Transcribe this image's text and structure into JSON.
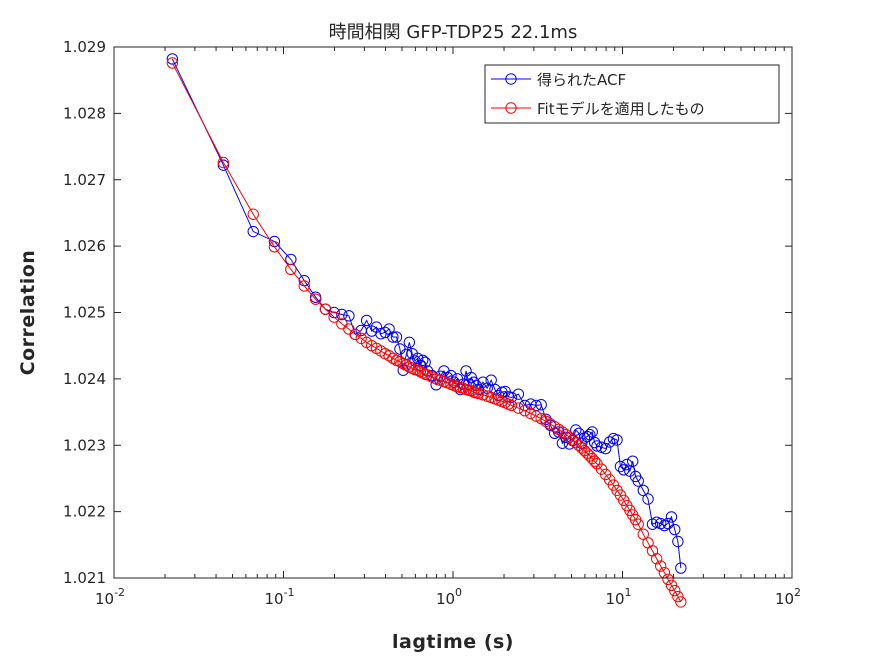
{
  "chart_data": {
    "type": "line",
    "title": "時間相関 GFP-TDP25 22.1ms",
    "xlabel": "lagtime (s)",
    "ylabel": "Correlation",
    "xscale": "log",
    "xlim": [
      0.01,
      100
    ],
    "ylim": [
      1.021,
      1.029
    ],
    "x_ticks": [
      {
        "base": "10",
        "exp": "-2",
        "value": 0.01
      },
      {
        "base": "10",
        "exp": "-1",
        "value": 0.1
      },
      {
        "base": "10",
        "exp": "0",
        "value": 1
      },
      {
        "base": "10",
        "exp": "1",
        "value": 10
      },
      {
        "base": "10",
        "exp": "2",
        "value": 100
      }
    ],
    "y_ticks": [
      {
        "label": "1.021",
        "value": 1.021
      },
      {
        "label": "1.022",
        "value": 1.022
      },
      {
        "label": "1.023",
        "value": 1.023
      },
      {
        "label": "1.024",
        "value": 1.024
      },
      {
        "label": "1.025",
        "value": 1.025
      },
      {
        "label": "1.026",
        "value": 1.026
      },
      {
        "label": "1.027",
        "value": 1.027
      },
      {
        "label": "1.028",
        "value": 1.028
      },
      {
        "label": "1.029",
        "value": 1.029
      }
    ],
    "grid": false,
    "legend_position": "top-right",
    "series": [
      {
        "name": "得られたACF",
        "color": "#0000ff",
        "marker": "circle",
        "x": [
          0.0221,
          0.0442,
          0.0663,
          0.0884,
          0.1105,
          0.1326,
          0.1547,
          0.1768,
          0.1989,
          0.221,
          0.2431,
          0.2652,
          0.2873,
          0.3094,
          0.3315,
          0.3536,
          0.3757,
          0.3978,
          0.4199,
          0.442,
          0.4641,
          0.4862,
          0.5083,
          0.5304,
          0.5525,
          0.5746,
          0.5967,
          0.6188,
          0.6409,
          0.663,
          0.6851,
          0.7072,
          0.7514,
          0.7956,
          0.8398,
          0.884,
          0.9282,
          0.9724,
          1.017,
          1.061,
          1.105,
          1.149,
          1.194,
          1.238,
          1.282,
          1.326,
          1.37,
          1.415,
          1.503,
          1.592,
          1.68,
          1.768,
          1.857,
          1.945,
          2.033,
          2.122,
          2.21,
          2.431,
          2.652,
          2.873,
          3.094,
          3.315,
          3.536,
          3.757,
          3.978,
          4.199,
          4.42,
          4.641,
          4.862,
          5.083,
          5.304,
          5.525,
          5.746,
          5.967,
          6.188,
          6.409,
          6.63,
          6.851,
          7.072,
          7.514,
          7.956,
          8.398,
          8.84,
          9.282,
          9.724,
          10.17,
          10.61,
          11.05,
          11.49,
          11.94,
          12.38,
          13.26,
          14.15,
          15.03,
          15.91,
          16.8,
          17.68,
          18.56,
          19.45,
          20.33,
          21.22,
          22.1
        ],
        "y": [
          1.02882,
          1.02722,
          1.02622,
          1.02607,
          1.0258,
          1.02548,
          1.02523,
          1.02505,
          1.025,
          1.02497,
          1.02495,
          1.02467,
          1.02473,
          1.02488,
          1.02472,
          1.02478,
          1.02468,
          1.0247,
          1.02475,
          1.02463,
          1.02463,
          1.02445,
          1.02413,
          1.02437,
          1.02455,
          1.02438,
          1.02427,
          1.02431,
          1.0242,
          1.02428,
          1.02425,
          1.02412,
          1.02405,
          1.02391,
          1.02404,
          1.02412,
          1.02402,
          1.02405,
          1.02395,
          1.024,
          1.02384,
          1.02392,
          1.02412,
          1.02392,
          1.02402,
          1.02395,
          1.0239,
          1.02384,
          1.02395,
          1.02386,
          1.02398,
          1.02384,
          1.02375,
          1.0238,
          1.02381,
          1.02373,
          1.02372,
          1.02377,
          1.0236,
          1.02362,
          1.0236,
          1.02361,
          1.02339,
          1.0233,
          1.02318,
          1.0232,
          1.02303,
          1.02312,
          1.02302,
          1.02307,
          1.02323,
          1.02318,
          1.02303,
          1.02311,
          1.02313,
          1.02316,
          1.0232,
          1.02304,
          1.02299,
          1.02297,
          1.02295,
          1.02305,
          1.0231,
          1.02308,
          1.02268,
          1.02263,
          1.02271,
          1.02261,
          1.02276,
          1.02253,
          1.02246,
          1.02232,
          1.02219,
          1.02181,
          1.02184,
          1.02182,
          1.02179,
          1.02182,
          1.02192,
          1.02173,
          1.02155,
          1.02115
        ]
      },
      {
        "name": "Fitモデルを適用したもの",
        "color": "#ff0000",
        "marker": "circle",
        "x": [
          0.0221,
          0.0442,
          0.0663,
          0.0884,
          0.1105,
          0.1326,
          0.1547,
          0.1768,
          0.1989,
          0.221,
          0.2431,
          0.2652,
          0.2873,
          0.3094,
          0.3315,
          0.3536,
          0.3757,
          0.3978,
          0.4199,
          0.442,
          0.4641,
          0.4862,
          0.5083,
          0.5304,
          0.5525,
          0.5746,
          0.5967,
          0.6188,
          0.6409,
          0.663,
          0.6851,
          0.7072,
          0.7514,
          0.7956,
          0.8398,
          0.884,
          0.9282,
          0.9724,
          1.017,
          1.061,
          1.105,
          1.149,
          1.194,
          1.238,
          1.282,
          1.326,
          1.37,
          1.415,
          1.503,
          1.592,
          1.68,
          1.768,
          1.857,
          1.945,
          2.033,
          2.122,
          2.21,
          2.431,
          2.652,
          2.873,
          3.094,
          3.315,
          3.536,
          3.757,
          3.978,
          4.199,
          4.42,
          4.641,
          4.862,
          5.083,
          5.304,
          5.525,
          5.746,
          5.967,
          6.188,
          6.409,
          6.63,
          6.851,
          7.072,
          7.514,
          7.956,
          8.398,
          8.84,
          9.282,
          9.724,
          10.17,
          10.61,
          11.05,
          11.49,
          11.94,
          12.38,
          13.26,
          14.15,
          15.03,
          15.91,
          16.8,
          17.68,
          18.56,
          19.45,
          20.33,
          21.22,
          22.1
        ],
        "y": [
          1.02876,
          1.02726,
          1.02648,
          1.02599,
          1.02565,
          1.0254,
          1.0252,
          1.02505,
          1.02493,
          1.02483,
          1.02475,
          1.02467,
          1.02461,
          1.02455,
          1.0245,
          1.02446,
          1.02442,
          1.02438,
          1.02435,
          1.02431,
          1.02428,
          1.02426,
          1.02423,
          1.02421,
          1.02418,
          1.02416,
          1.02414,
          1.02413,
          1.02411,
          1.02409,
          1.02407,
          1.02406,
          1.02403,
          1.024,
          1.02398,
          1.02396,
          1.02394,
          1.02392,
          1.0239,
          1.02388,
          1.02387,
          1.02386,
          1.02384,
          1.02383,
          1.02382,
          1.0238,
          1.02379,
          1.02378,
          1.02376,
          1.02374,
          1.02372,
          1.0237,
          1.02368,
          1.02366,
          1.02364,
          1.02362,
          1.0236,
          1.02356,
          1.02352,
          1.02348,
          1.02344,
          1.0234,
          1.02336,
          1.02332,
          1.02328,
          1.02324,
          1.0232,
          1.02316,
          1.02312,
          1.02308,
          1.02304,
          1.023,
          1.02296,
          1.02292,
          1.02288,
          1.02284,
          1.0228,
          1.02276,
          1.02272,
          1.02264,
          1.02256,
          1.02248,
          1.0224,
          1.02232,
          1.02225,
          1.02217,
          1.02209,
          1.02202,
          1.02195,
          1.02188,
          1.02181,
          1.02166,
          1.02153,
          1.02141,
          1.02129,
          1.02118,
          1.02108,
          1.02098,
          1.02089,
          1.02081,
          1.02072,
          1.02064
        ]
      }
    ]
  }
}
